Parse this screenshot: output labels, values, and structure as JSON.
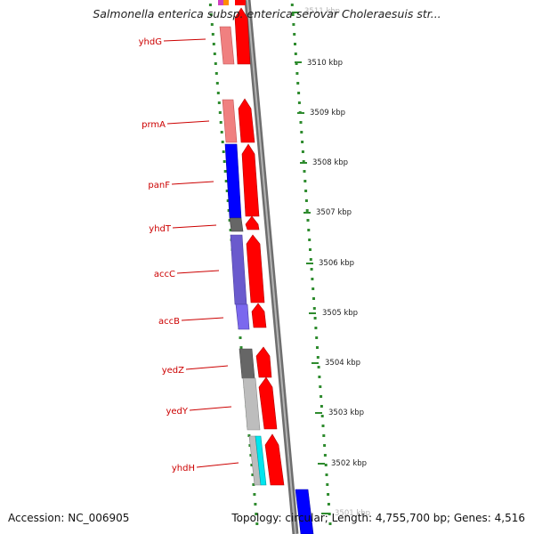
{
  "title": "Salmonella enterica subsp. enterica serovar Choleraesuis str...",
  "footer": {
    "accession": "Accession: NC_006905",
    "summary": "Topology: circular; Length: 4,755,700 bp; Genes: 4,516"
  },
  "colors": {
    "backbone": "#8a8a8a",
    "dotted_ring": "#2e8b2e",
    "gene_label": "#cc0000",
    "cds_arrow": "#ff0000"
  },
  "scale": {
    "unit": "kbp",
    "ticks": [
      "3511 kbp",
      "3510 kbp",
      "3509 kbp",
      "3508 kbp",
      "3507 kbp",
      "3506 kbp",
      "3505 kbp",
      "3504 kbp",
      "3503 kbp",
      "3502 kbp",
      "3501 kbp"
    ]
  },
  "genes": [
    {
      "name": "yhdG",
      "cog_color": "#f08080"
    },
    {
      "name": "prmA",
      "cog_color": "#f08080"
    },
    {
      "name": "panF",
      "cog_color": "#0000ff"
    },
    {
      "name": "yhdT",
      "cog_color": "#666666"
    },
    {
      "name": "accC",
      "cog_color": "#6a5acd"
    },
    {
      "name": "accB",
      "cog_color": "#6a5acd"
    },
    {
      "name": "yedZ",
      "cog_color": "#666666"
    },
    {
      "name": "yedY",
      "cog_color": "#bdbdbd"
    },
    {
      "name": "yhdH",
      "cog_color": "#bdbdbd"
    }
  ]
}
